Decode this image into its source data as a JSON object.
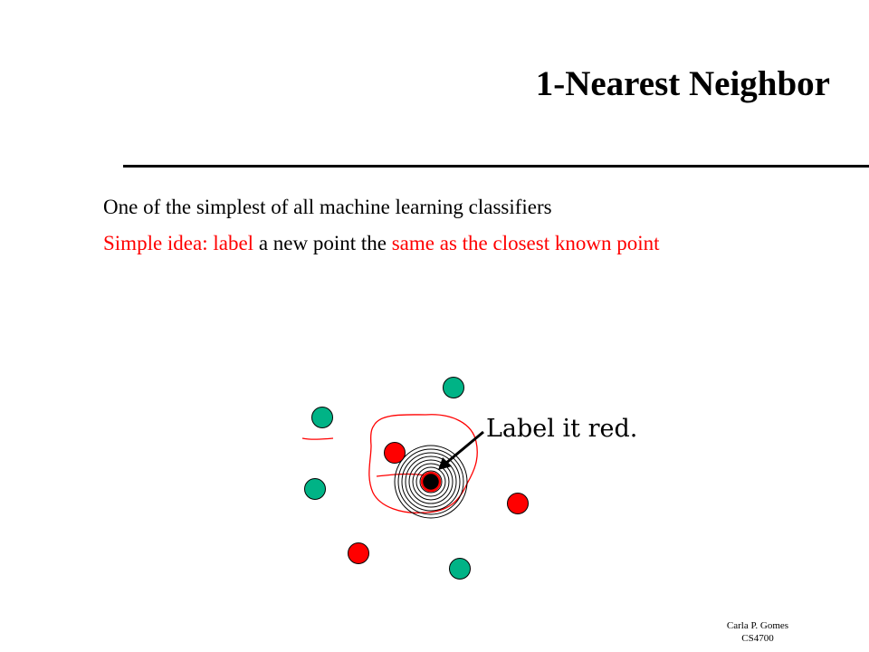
{
  "slide": {
    "title": "1-Nearest Neighbor",
    "bullets": {
      "line1": "One of the simplest of all machine learning classifiers",
      "line2": {
        "part1": "Simple idea:  ",
        "part2": "label",
        "part3": " a new point the ",
        "part4": "same as the closest known point"
      }
    },
    "annotation": "Label it red.",
    "footer": {
      "author": "Carla P. Gomes",
      "course": "CS4700"
    }
  },
  "colors": {
    "red_class": "#ff0000",
    "green_class": "#00b386",
    "query_point": "#000000",
    "annotation_ink": "#ff0000"
  }
}
